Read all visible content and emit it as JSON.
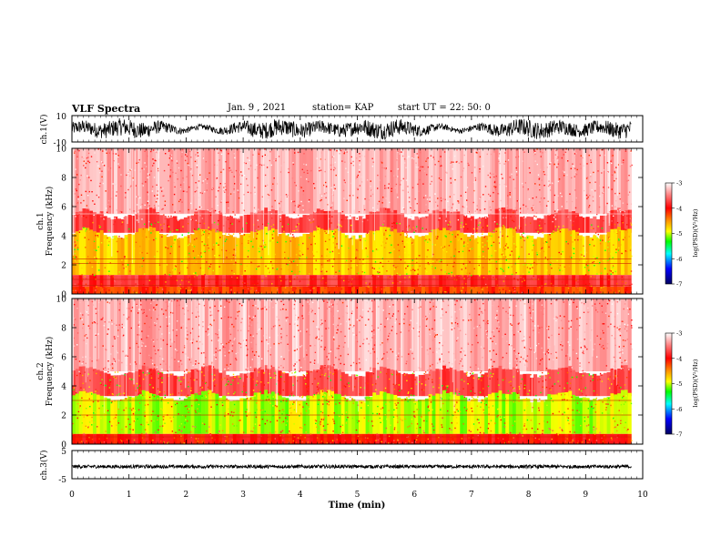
{
  "header": {
    "title": "VLF Spectra",
    "date": "Jan. 9 , 2021",
    "station": "station= KAP",
    "start": "start UT =  22: 50: 0"
  },
  "chart_data": [
    {
      "type": "line",
      "panel": "ch1-waveform",
      "ylabel": "ch.1(V)",
      "yticks": [
        "10",
        "-10"
      ],
      "ylim": [
        -10,
        10
      ],
      "xlim": [
        0,
        9.8
      ],
      "line_color": "#000000",
      "note_values": "dense oscillating waveform spanning roughly -8 to 8 V"
    },
    {
      "type": "heatmap",
      "panel": "ch1-spectrogram",
      "ylabel": "ch.1\nFrequency (kHz)",
      "ylabel_top": "ch.1",
      "ylabel_bottom": "Frequency (kHz)",
      "yticks": [
        "0",
        "2",
        "4",
        "6",
        "8",
        "10"
      ],
      "ylim": [
        0,
        10
      ],
      "xlim": [
        0,
        9.8
      ],
      "bands": [
        {
          "from": 5.5,
          "to": 10,
          "level": -3.3
        },
        {
          "from": 4.2,
          "to": 5.5,
          "level": -3.7
        },
        {
          "from": 1.3,
          "to": 4.2,
          "level": -4.7
        },
        {
          "from": 0.5,
          "to": 1.3,
          "level": -3.8
        },
        {
          "from": 0,
          "to": 0.5,
          "level": -4.2
        }
      ],
      "lines_khz": [
        5.5,
        2.4,
        2.1,
        1.0,
        0.6
      ]
    },
    {
      "type": "heatmap",
      "panel": "ch2-spectrogram",
      "ylabel_top": "ch.2",
      "ylabel_bottom": "Frequency (kHz)",
      "yticks": [
        "0",
        "2",
        "4",
        "6",
        "8",
        "10"
      ],
      "ylim": [
        0,
        10
      ],
      "xlim": [
        0,
        9.8
      ],
      "bands": [
        {
          "from": 5.0,
          "to": 10,
          "level": -3.3
        },
        {
          "from": 3.3,
          "to": 5.0,
          "level": -3.7
        },
        {
          "from": 0.7,
          "to": 3.3,
          "level": -5.0
        },
        {
          "from": 0,
          "to": 0.7,
          "level": -4.0
        }
      ],
      "lines_khz": [
        3.0,
        2.0,
        0.5
      ]
    },
    {
      "type": "line",
      "panel": "ch3-waveform",
      "ylabel": "ch.3(V)",
      "yticks": [
        "5",
        "-5"
      ],
      "ylim": [
        -5,
        5
      ],
      "xlim": [
        0,
        9.8
      ],
      "line_color": "#000000",
      "band_center": -0.7,
      "band_halfwidth": 0.6
    }
  ],
  "x_axis": {
    "xlabel": "Time (min)",
    "ticks": [
      "0",
      "1",
      "2",
      "3",
      "4",
      "5",
      "6",
      "7",
      "8",
      "9",
      "10"
    ],
    "xlim": [
      0,
      10
    ]
  },
  "colorbars": [
    {
      "name": "ch1",
      "ticks": [
        "-3",
        "-4",
        "-5",
        "-6",
        "-7"
      ],
      "range": [
        -7,
        -3
      ],
      "label": "log(PSD)(V²/Hz)"
    },
    {
      "name": "ch2",
      "ticks": [
        "-3",
        "-4",
        "-5",
        "-6",
        "-7"
      ],
      "range": [
        -7,
        -3
      ],
      "label": "log(PSD)(V²/Hz)"
    }
  ],
  "colormap": [
    "#ffffff",
    "#ff0000",
    "#ffff00",
    "#00ff00",
    "#00ffff",
    "#0000ff",
    "#000080"
  ]
}
